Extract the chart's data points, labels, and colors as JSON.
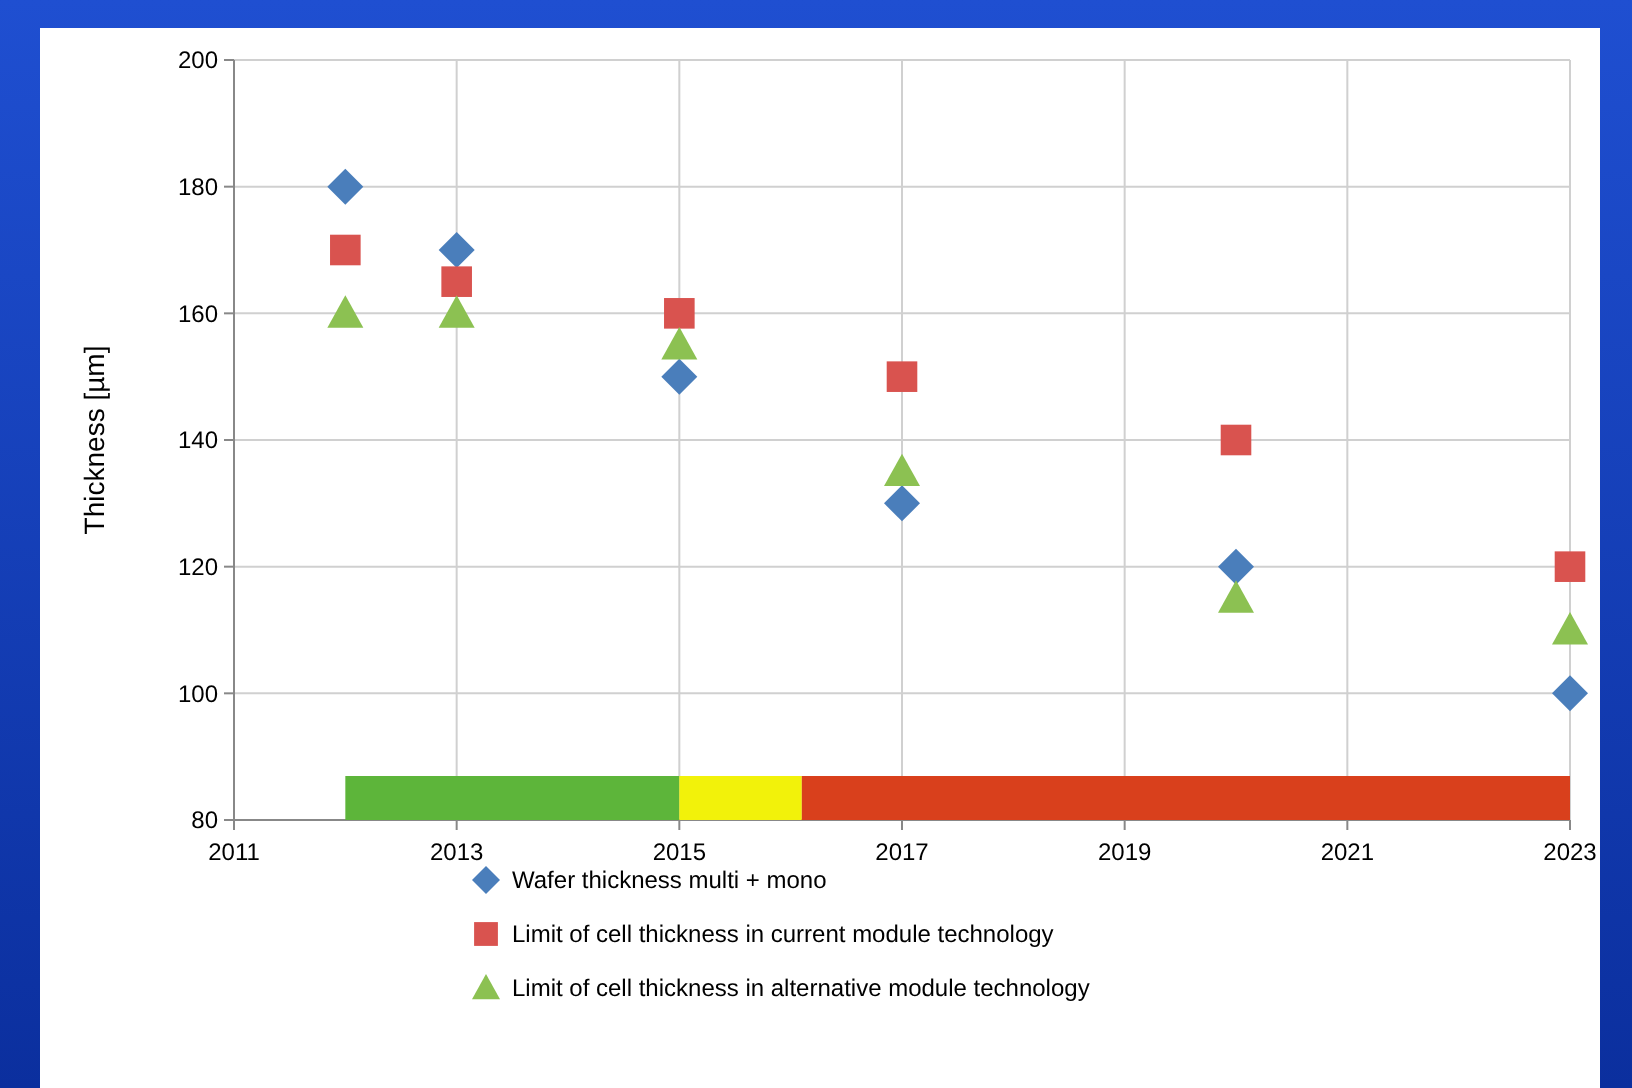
{
  "chart_data": {
    "type": "scatter",
    "ylabel": "Thickness [µm]",
    "xlim": [
      2011,
      2023
    ],
    "xticks": [
      2011,
      2013,
      2015,
      2017,
      2019,
      2021,
      2023
    ],
    "ylim": [
      80,
      200
    ],
    "yticks": [
      80,
      100,
      120,
      140,
      160,
      180,
      200
    ],
    "grid": true,
    "legend": "bottom",
    "series": [
      {
        "name": "Wafer thickness multi + mono",
        "color": "#4a7ebb",
        "marker": "diamond",
        "x": [
          2012,
          2013,
          2015,
          2017,
          2020,
          2023
        ],
        "values": [
          180,
          170,
          150,
          130,
          120,
          100
        ]
      },
      {
        "name": "Limit of cell thickness in current module technology",
        "color": "#d9534f",
        "marker": "square",
        "x": [
          2012,
          2013,
          2015,
          2017,
          2020,
          2023
        ],
        "values": [
          170,
          165,
          160,
          150,
          140,
          120
        ]
      },
      {
        "name": "Limit of cell thickness in alternative module technology",
        "color": "#8cc152",
        "marker": "triangle",
        "x": [
          2012,
          2013,
          2015,
          2017,
          2020,
          2023
        ],
        "values": [
          160,
          160,
          155,
          135,
          115,
          110
        ]
      }
    ],
    "bands": [
      {
        "axis": "x",
        "from": 2012,
        "to": 2015,
        "color": "#5db53a"
      },
      {
        "axis": "x",
        "from": 2015,
        "to": 2016.1,
        "color": "#f2f20a"
      },
      {
        "axis": "x",
        "from": 2016.1,
        "to": 2023,
        "color": "#d9401c"
      }
    ]
  }
}
